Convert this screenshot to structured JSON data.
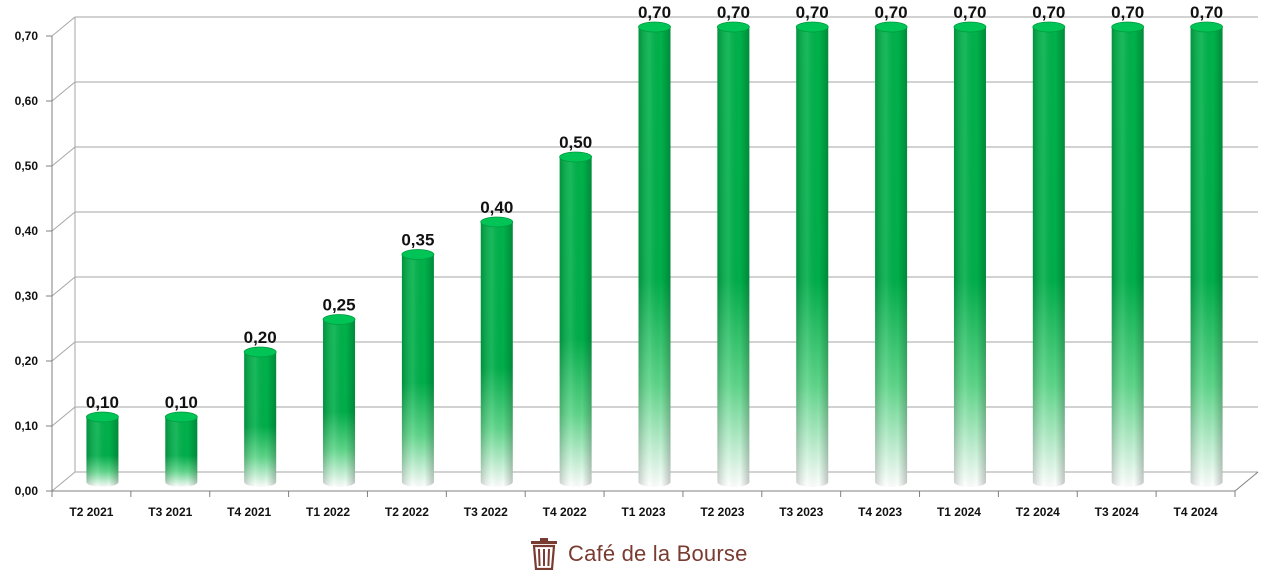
{
  "chart_data": {
    "type": "bar",
    "categories": [
      "T2 2021",
      "T3 2021",
      "T4 2021",
      "T1 2022",
      "T2 2022",
      "T3 2022",
      "T4 2022",
      "T1 2023",
      "T2 2023",
      "T3 2023",
      "T4 2023",
      "T1 2024",
      "T2 2024",
      "T3 2024",
      "T4 2024"
    ],
    "values": [
      0.1,
      0.1,
      0.2,
      0.25,
      0.35,
      0.4,
      0.5,
      0.7,
      0.7,
      0.7,
      0.7,
      0.7,
      0.7,
      0.7,
      0.7
    ],
    "value_labels": [
      "0,10",
      "0,10",
      "0,20",
      "0,25",
      "0,35",
      "0,40",
      "0,50",
      "0,70",
      "0,70",
      "0,70",
      "0,70",
      "0,70",
      "0,70",
      "0,70",
      "0,70"
    ],
    "yticks": [
      0,
      0.1,
      0.2,
      0.3,
      0.4,
      0.5,
      0.6,
      0.7
    ],
    "ytick_labels": [
      "0,00",
      "0,10",
      "0,20",
      "0,30",
      "0,40",
      "0,50",
      "0,60",
      "0,70"
    ],
    "ylim": [
      0,
      0.7
    ],
    "title": "",
    "xlabel": "",
    "ylabel": "",
    "grid": true,
    "legend": "none",
    "bar_color": "#00b050",
    "bar_fade_color": "#ffffff"
  },
  "branding": {
    "logo_icon": "trash-can-icon",
    "text": "Café de la Bourse",
    "color": "#7a3b30"
  }
}
